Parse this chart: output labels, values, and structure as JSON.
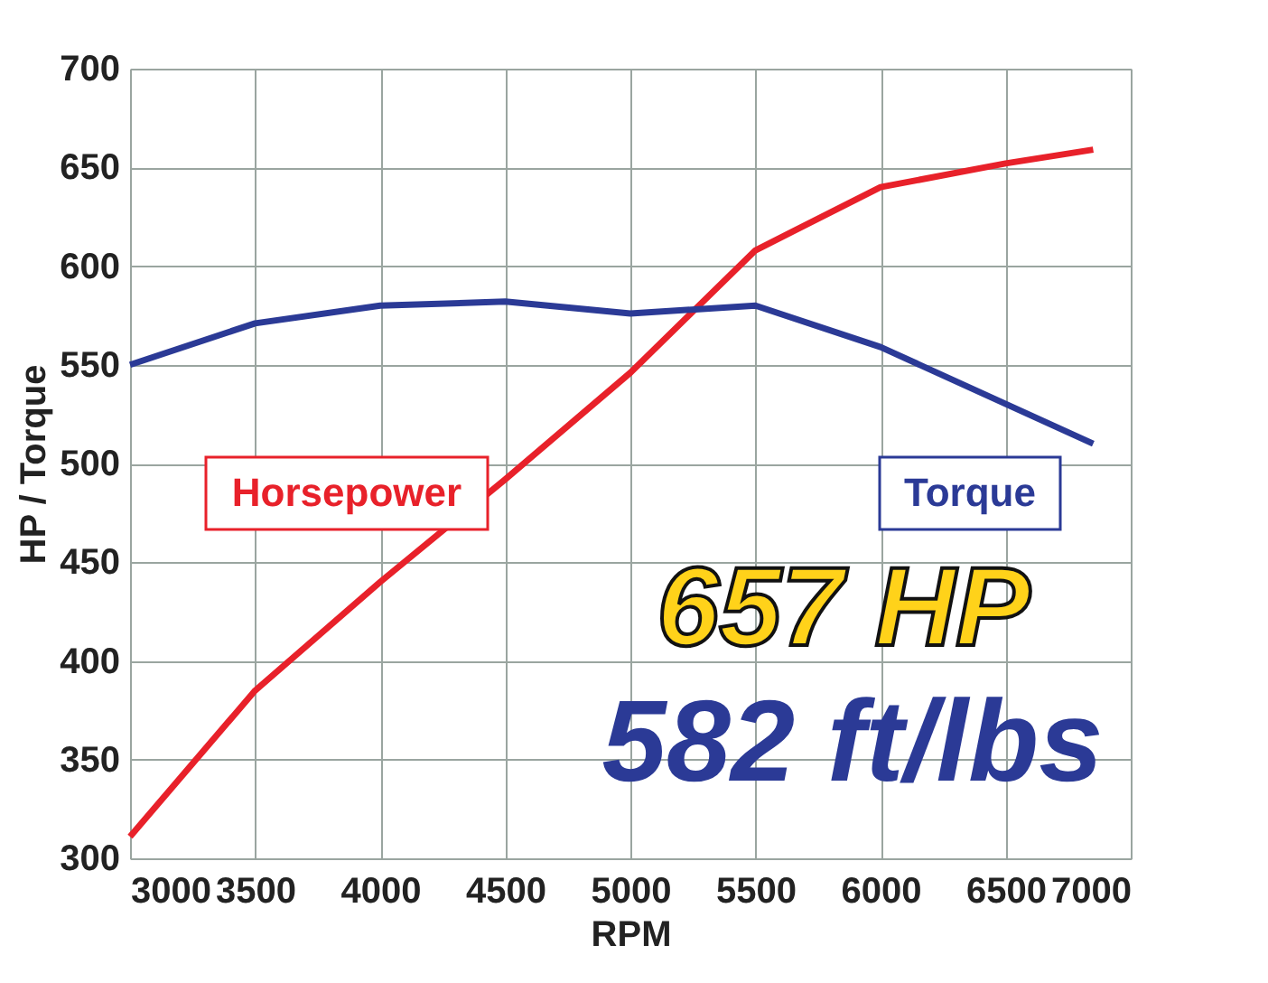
{
  "chart_data": {
    "type": "line",
    "xlabel": "RPM",
    "ylabel": "HP / Torque",
    "x": [
      3000,
      3500,
      4000,
      4500,
      5000,
      5500,
      6000,
      6500,
      6850
    ],
    "series": [
      {
        "name": "Horsepower",
        "color": "#e8212a",
        "values": [
          311,
          385,
          440,
          492,
          546,
          608,
          640,
          652,
          659
        ]
      },
      {
        "name": "Torque",
        "color": "#2b3a96",
        "values": [
          550,
          571,
          580,
          582,
          576,
          580,
          559,
          null,
          510
        ]
      }
    ],
    "xlim": [
      3000,
      7000
    ],
    "xticks": [
      3000,
      3500,
      4000,
      4500,
      5000,
      5500,
      6000,
      6500,
      7000
    ],
    "ylim": [
      300,
      700
    ],
    "yticks": [
      300,
      350,
      400,
      450,
      500,
      550,
      600,
      650,
      700
    ],
    "grid": true,
    "legend": false,
    "marker": "none",
    "line_style": "solid",
    "annotations": [
      "657 HP",
      "582 ft/lbs"
    ]
  }
}
